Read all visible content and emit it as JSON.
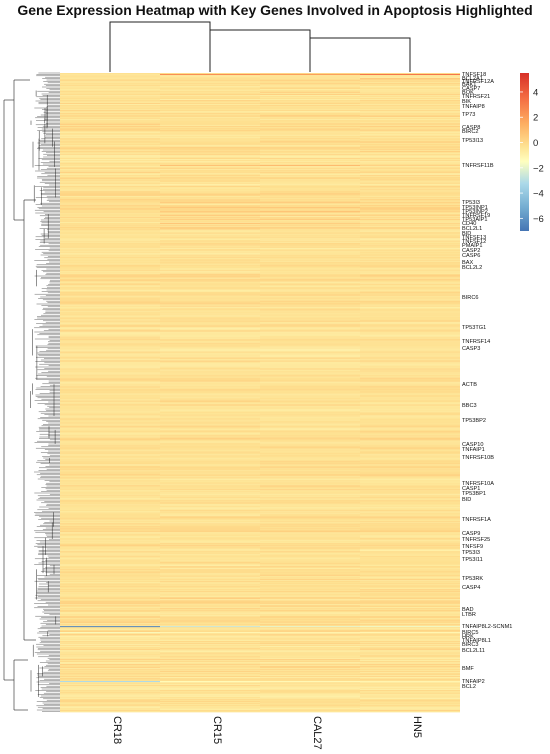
{
  "chart_data": {
    "type": "heatmap",
    "title": "Gene Expression Heatmap with Key Genes Involved in Apoptosis Highlighted",
    "columns": [
      "CR18",
      "CR15",
      "CAL27",
      "HN5"
    ],
    "column_dendrogram_order": [
      "CR18",
      "CR15",
      "CAL27",
      "HN5"
    ],
    "colorbar": {
      "min": -7,
      "max": 5.5,
      "ticks": [
        4,
        2,
        0,
        -2,
        -4,
        -6
      ],
      "tick_labels": [
        "4",
        "2",
        "0",
        "−2",
        "−4",
        "−6"
      ],
      "colors": {
        "high": "#d73027",
        "mid_high": "#fdae61",
        "mid": "#ffffbf",
        "mid_low": "#abd9e9",
        "low": "#4575b4"
      }
    },
    "row_count_estimate": 1200,
    "highlighted_genes": [
      {
        "gene": "TNFSF18",
        "values": [
          0.3,
          2.5,
          2.0,
          3.2
        ]
      },
      {
        "gene": "BCL2A1",
        "values": [
          0.3,
          0.5,
          0.4,
          1.0
        ]
      },
      {
        "gene": "TNFRSF12A",
        "values": [
          0.3,
          0.4,
          0.5,
          0.6
        ]
      },
      {
        "gene": "BAK1",
        "values": [
          0.4,
          0.4,
          0.5,
          0.5
        ]
      },
      {
        "gene": "CASP7",
        "values": [
          0.4,
          0.5,
          0.7,
          0.5
        ]
      },
      {
        "gene": "BOK",
        "values": [
          0.4,
          0.4,
          0.8,
          0.4
        ]
      },
      {
        "gene": "TNFRSF21",
        "values": [
          0.4,
          0.5,
          0.5,
          0.5
        ]
      },
      {
        "gene": "BIK",
        "values": [
          0.4,
          0.5,
          0.4,
          0.5
        ]
      },
      {
        "gene": "TNFAIP8",
        "values": [
          0.4,
          0.5,
          0.4,
          0.4
        ]
      },
      {
        "gene": "TP73",
        "values": [
          0.4,
          0.4,
          0.5,
          0.4
        ]
      },
      {
        "gene": "CASP8",
        "values": [
          0.5,
          0.4,
          0.4,
          0.5
        ]
      },
      {
        "gene": "BIRC2",
        "values": [
          0.4,
          0.5,
          0.4,
          0.4
        ]
      },
      {
        "gene": "TP53I13",
        "values": [
          0.4,
          0.4,
          0.5,
          0.4
        ]
      },
      {
        "gene": "TNFRSF11B",
        "values": [
          0.5,
          1.3,
          1.5,
          0.9
        ]
      },
      {
        "gene": "TP53I3",
        "values": [
          0.5,
          1.0,
          1.0,
          0.8
        ]
      },
      {
        "gene": "TP53INP1",
        "values": [
          0.5,
          1.1,
          1.1,
          0.8
        ]
      },
      {
        "gene": "TP53INP2",
        "values": [
          0.5,
          1.0,
          1.2,
          0.8
        ]
      },
      {
        "gene": "TNFRSF19",
        "values": [
          0.5,
          1.1,
          1.0,
          0.9
        ]
      },
      {
        "gene": "TP53AIP1",
        "values": [
          0.5,
          1.0,
          1.1,
          0.9
        ]
      },
      {
        "gene": "CD40",
        "values": [
          0.5,
          1.3,
          1.0,
          0.8
        ]
      },
      {
        "gene": "BCL2L1",
        "values": [
          0.5,
          0.9,
          0.8,
          0.8
        ]
      },
      {
        "gene": "BID",
        "values": [
          0.5,
          0.6,
          0.6,
          0.6
        ]
      },
      {
        "gene": "TNFSF13",
        "values": [
          0.5,
          0.6,
          0.6,
          0.7
        ]
      },
      {
        "gene": "TNFSF12",
        "values": [
          0.5,
          0.6,
          0.6,
          0.6
        ]
      },
      {
        "gene": "PMAIP1",
        "values": [
          0.5,
          0.6,
          0.6,
          0.6
        ]
      },
      {
        "gene": "CASP2",
        "values": [
          0.5,
          0.6,
          0.6,
          0.6
        ]
      },
      {
        "gene": "CASP6",
        "values": [
          0.5,
          0.6,
          0.6,
          0.6
        ]
      },
      {
        "gene": "BAX",
        "values": [
          0.5,
          0.6,
          0.6,
          0.6
        ]
      },
      {
        "gene": "BCL2L2",
        "values": [
          0.5,
          0.5,
          0.5,
          0.6
        ]
      },
      {
        "gene": "BIRC6",
        "values": [
          0.4,
          0.4,
          0.4,
          0.4
        ]
      },
      {
        "gene": "TP53TG1",
        "values": [
          0.4,
          0.4,
          0.4,
          0.4
        ]
      },
      {
        "gene": "TNFRSF14",
        "values": [
          0.4,
          0.5,
          0.5,
          0.4
        ]
      },
      {
        "gene": "CASP3",
        "values": [
          0.4,
          0.4,
          0.4,
          0.4
        ]
      },
      {
        "gene": "ACTB",
        "values": [
          0.4,
          0.4,
          0.4,
          0.4
        ]
      },
      {
        "gene": "BBC3",
        "values": [
          0.4,
          0.4,
          0.4,
          0.4
        ]
      },
      {
        "gene": "TP53BP2",
        "values": [
          0.4,
          0.4,
          0.4,
          0.4
        ]
      },
      {
        "gene": "CASP10",
        "values": [
          0.4,
          0.4,
          0.4,
          0.4
        ]
      },
      {
        "gene": "TNFAIP1",
        "values": [
          0.4,
          0.4,
          0.4,
          0.4
        ]
      },
      {
        "gene": "TNFRSF10B",
        "values": [
          0.4,
          0.4,
          0.4,
          0.4
        ]
      },
      {
        "gene": "TNFRSF10A",
        "values": [
          0.4,
          0.4,
          0.4,
          0.4
        ]
      },
      {
        "gene": "CASP1",
        "values": [
          0.4,
          0.4,
          0.4,
          0.4
        ]
      },
      {
        "gene": "TP53BP1",
        "values": [
          0.4,
          0.4,
          0.4,
          0.4
        ]
      },
      {
        "gene": "BID",
        "values": [
          0.4,
          0.4,
          0.4,
          0.4
        ]
      },
      {
        "gene": "TNFRSF1A",
        "values": [
          0.4,
          0.4,
          0.4,
          0.4
        ]
      },
      {
        "gene": "CASP9",
        "values": [
          0.4,
          0.4,
          0.4,
          0.4
        ]
      },
      {
        "gene": "TNFRSF25",
        "values": [
          0.4,
          0.4,
          0.4,
          0.4
        ]
      },
      {
        "gene": "TNFSF9",
        "values": [
          0.4,
          0.4,
          0.4,
          0.4
        ]
      },
      {
        "gene": "TP53I3",
        "values": [
          0.4,
          0.4,
          0.4,
          0.4
        ]
      },
      {
        "gene": "TP53I11",
        "values": [
          0.4,
          0.4,
          0.4,
          0.4
        ]
      },
      {
        "gene": "TP53RK",
        "values": [
          0.4,
          0.4,
          0.4,
          0.4
        ]
      },
      {
        "gene": "CASP4",
        "values": [
          0.4,
          0.4,
          0.4,
          0.4
        ]
      },
      {
        "gene": "BAD",
        "values": [
          0.4,
          0.4,
          0.4,
          0.4
        ]
      },
      {
        "gene": "LTBR",
        "values": [
          0.4,
          0.4,
          0.4,
          0.4
        ]
      },
      {
        "gene": "TNFAIP8L2-SCNM1",
        "values": [
          -6.2,
          -1.6,
          -1.0,
          -0.8
        ]
      },
      {
        "gene": "BIRC5",
        "values": [
          -0.6,
          -0.3,
          -0.2,
          -0.3
        ]
      },
      {
        "gene": "HRK",
        "values": [
          0.0,
          0.1,
          0.2,
          0.2
        ]
      },
      {
        "gene": "TNFAIP8L1",
        "values": [
          0.1,
          0.1,
          0.2,
          0.2
        ]
      },
      {
        "gene": "BIRC3",
        "values": [
          0.1,
          0.2,
          0.2,
          0.2
        ]
      },
      {
        "gene": "BCL2L11",
        "values": [
          0.1,
          0.2,
          0.2,
          0.2
        ]
      },
      {
        "gene": "BMF",
        "values": [
          0.2,
          0.3,
          0.3,
          0.3
        ]
      },
      {
        "gene": "TNFAIP2",
        "values": [
          -2.2,
          -0.4,
          -0.3,
          -0.2
        ]
      },
      {
        "gene": "BCL2",
        "values": [
          0.2,
          0.3,
          0.3,
          0.3
        ]
      }
    ]
  }
}
